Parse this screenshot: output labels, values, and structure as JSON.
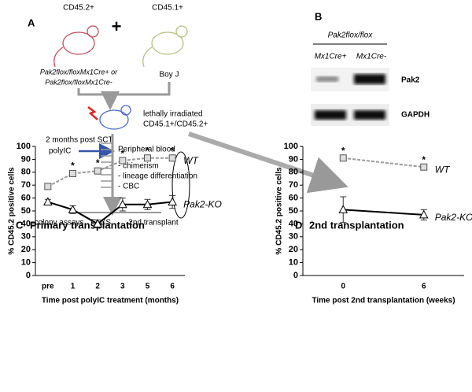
{
  "panel_a": {
    "label": "A",
    "donor1": "CD45.2+",
    "plus": "+",
    "donor2": "CD45.1+",
    "genotype1": "Pak2flox/floxMx1Cre+ or",
    "genotype2": "Pak2flox/floxMx1Cre-",
    "strain2": "Boy J",
    "recipient1": "lethally irradiated",
    "recipient2": "CD45.1+/CD45.2+",
    "timing": "2 months post SCT",
    "treatment": "polyIC",
    "sample": "Peripheral blood",
    "readouts": [
      "- chimerism",
      "- lineage differentiation",
      "- CBC"
    ],
    "assays": [
      "colony assays",
      "FACS",
      "2nd transplant"
    ]
  },
  "panel_b": {
    "label": "B",
    "genotype": "Pak2flox/flox",
    "lanes": [
      "Mx1Cre+",
      "Mx1Cre-"
    ],
    "blots": [
      "Pak2",
      "GAPDH"
    ]
  },
  "chart_data": [
    {
      "type": "line",
      "panel": "C",
      "title": "Primary transplantation",
      "categories": [
        "pre",
        "1",
        "2",
        "3",
        "5",
        "6"
      ],
      "x_label": "Time post polyIC treatment (months)",
      "y_label": "% CD45.2 positive cells",
      "ylim": [
        0,
        100
      ],
      "yticks": [
        0,
        10,
        20,
        30,
        40,
        50,
        60,
        70,
        80,
        90,
        100
      ],
      "significance": [
        null,
        "*",
        "*",
        "*",
        "*",
        "*"
      ],
      "series": [
        {
          "name": "WT",
          "color": "#9a9a9a",
          "dash": true,
          "marker": "square",
          "values": [
            69,
            79,
            81,
            89,
            91,
            91
          ],
          "errors": [
            1.5,
            2,
            2,
            1.5,
            1.5,
            1.5
          ]
        },
        {
          "name": "Pak2-KO",
          "color": "#000000",
          "dash": false,
          "marker": "triangle",
          "values": [
            57,
            51,
            40,
            55,
            55,
            57
          ],
          "errors": [
            2,
            3,
            3,
            5,
            4,
            5
          ]
        }
      ]
    },
    {
      "type": "line",
      "panel": "D",
      "title": "2nd transplantation",
      "categories": [
        "0",
        "6"
      ],
      "x_label": "Time post 2nd transplantation (weeks)",
      "y_label": "% CD45.2 positive cells",
      "ylim": [
        0,
        100
      ],
      "yticks": [
        0,
        10,
        20,
        30,
        40,
        50,
        60,
        70,
        80,
        90,
        100
      ],
      "significance": [
        "*",
        "*"
      ],
      "series": [
        {
          "name": "WT",
          "color": "#9a9a9a",
          "dash": true,
          "marker": "square",
          "values": [
            91,
            84
          ],
          "errors": [
            1.5,
            1.5
          ]
        },
        {
          "name": "Pak2-KO",
          "color": "#000000",
          "dash": false,
          "marker": "triangle",
          "values": [
            51,
            47
          ],
          "errors": [
            10,
            4
          ]
        }
      ]
    }
  ]
}
